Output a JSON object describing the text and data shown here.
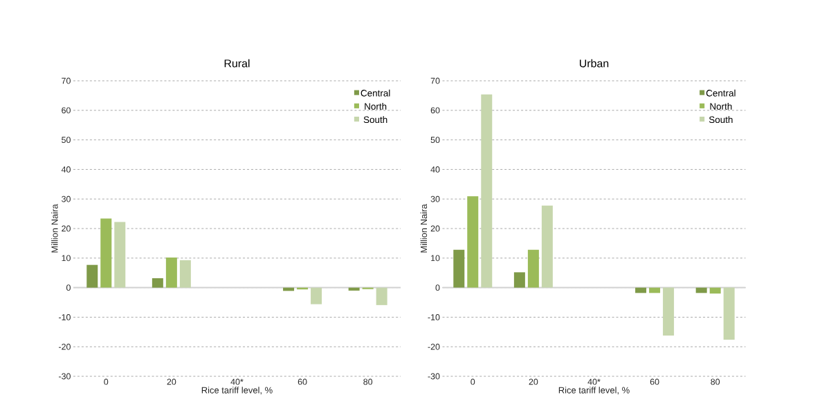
{
  "chart_data": [
    {
      "type": "bar",
      "title": "Rural",
      "xlabel": "Rice tariff level, %",
      "ylabel": "Million Naira",
      "categories": [
        "0",
        "20",
        "40*",
        "60",
        "80"
      ],
      "series": [
        {
          "name": "Central",
          "color": "#7f9a48",
          "values": [
            7.7,
            3.2,
            null,
            -1.1,
            -1.0
          ]
        },
        {
          "name": "North",
          "color": "#9bbb59",
          "values": [
            23.4,
            10.2,
            null,
            -0.6,
            -0.5
          ]
        },
        {
          "name": "South",
          "color": "#c6d6ac",
          "values": [
            22.2,
            9.3,
            null,
            -5.6,
            -5.9
          ]
        }
      ],
      "ylim": [
        -30,
        70
      ],
      "yticks": [
        -30,
        -20,
        -10,
        0,
        10,
        20,
        30,
        40,
        50,
        60,
        70
      ],
      "grid": "y",
      "legend": "top right"
    },
    {
      "type": "bar",
      "title": "Urban",
      "xlabel": "Rice tariff level, %",
      "ylabel": "Million Naira",
      "categories": [
        "0",
        "20",
        "40*",
        "60",
        "80"
      ],
      "series": [
        {
          "name": "Central",
          "color": "#7f9a48",
          "values": [
            12.8,
            5.2,
            null,
            -1.8,
            -1.8
          ]
        },
        {
          "name": "North",
          "color": "#9bbb59",
          "values": [
            30.9,
            12.8,
            null,
            -1.8,
            -2.0
          ]
        },
        {
          "name": "South",
          "color": "#c6d6ac",
          "values": [
            65.4,
            27.8,
            null,
            -16.2,
            -17.6
          ]
        }
      ],
      "ylim": [
        -30,
        70
      ],
      "yticks": [
        -30,
        -20,
        -10,
        0,
        10,
        20,
        30,
        40,
        50,
        60,
        70
      ],
      "grid": "y",
      "legend": "top right"
    }
  ]
}
